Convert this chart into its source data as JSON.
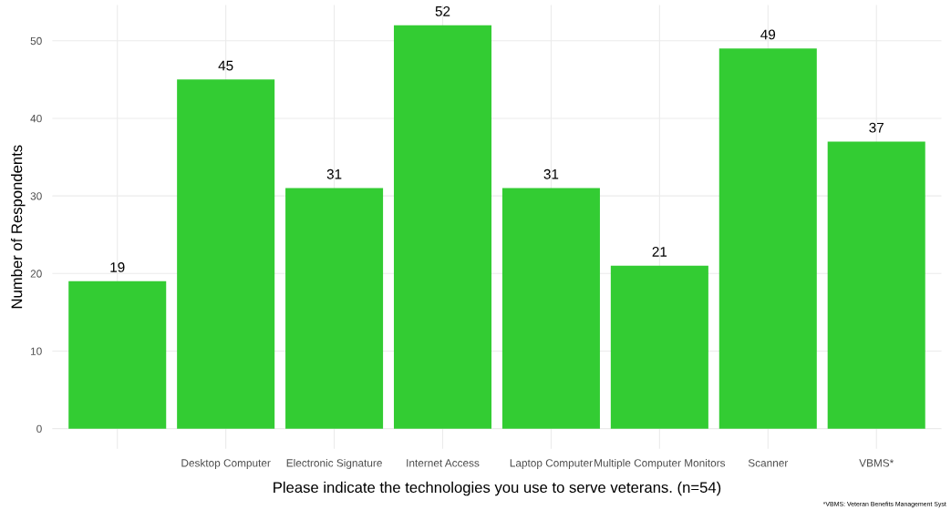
{
  "chart_data": {
    "type": "bar",
    "xlabel": "Please indicate the technologies you use to serve veterans. (n=54)",
    "ylabel": "Number of Respondents",
    "categories": [
      null,
      "Desktop Computer",
      "Electronic Signature",
      "Internet Access",
      "Laptop Computer",
      "Multiple Computer Monitors",
      "Scanner",
      "VBMS*"
    ],
    "values": [
      19,
      45,
      31,
      52,
      31,
      21,
      49,
      37
    ],
    "color": "#33cc33",
    "data_labels": true,
    "ylim": [
      -2.6,
      54.6
    ],
    "yticks": [
      0,
      10,
      20,
      30,
      40,
      50
    ],
    "grid": true,
    "annotations": [
      "*VBMS: Veteran Benefits Management Syst"
    ]
  }
}
